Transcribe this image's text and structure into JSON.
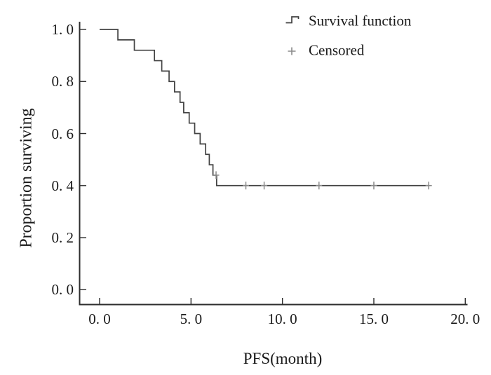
{
  "figure_title": "",
  "colors": {
    "background": "#ffffff",
    "axis": "#2d2d2d",
    "curve": "#424242",
    "censor_mark": "#8a8a8a",
    "text": "#1b1b1b"
  },
  "chart_data": {
    "type": "line",
    "subtype": "kaplan-meier-step",
    "title": "",
    "xlabel": "PFS(month)",
    "ylabel": "Proportion surviving",
    "xlim": [
      0,
      20
    ],
    "ylim": [
      0.0,
      1.0
    ],
    "grid": false,
    "legend_position": "top-right",
    "x_ticks": {
      "values": [
        0,
        5,
        10,
        15,
        20
      ],
      "labels": [
        "0. 0",
        "5. 0",
        "10. 0",
        "15. 0",
        "20. 0"
      ]
    },
    "y_ticks": {
      "values": [
        1.0,
        0.8,
        0.6,
        0.4,
        0.2,
        0.0
      ],
      "labels": [
        "1. 0",
        "0. 8",
        "0. 6",
        "0. 4",
        "0. 2",
        "0. 0"
      ]
    },
    "series": [
      {
        "name": "Survival function",
        "type": "step",
        "start": [
          0.0,
          1.0
        ],
        "drops": [
          [
            1.0,
            0.96
          ],
          [
            1.9,
            0.92
          ],
          [
            3.0,
            0.88
          ],
          [
            3.4,
            0.84
          ],
          [
            3.8,
            0.8
          ],
          [
            4.1,
            0.76
          ],
          [
            4.4,
            0.72
          ],
          [
            4.6,
            0.68
          ],
          [
            4.9,
            0.64
          ],
          [
            5.2,
            0.6
          ],
          [
            5.5,
            0.56
          ],
          [
            5.8,
            0.52
          ],
          [
            6.0,
            0.48
          ],
          [
            6.2,
            0.44
          ],
          [
            6.4,
            0.4
          ]
        ],
        "end_x": 18.0
      },
      {
        "name": "Censored",
        "type": "scatter_plus",
        "points": [
          [
            6.37,
            0.44
          ],
          [
            8.0,
            0.4
          ],
          [
            9.0,
            0.4
          ],
          [
            12.0,
            0.4
          ],
          [
            15.0,
            0.4
          ],
          [
            18.0,
            0.4
          ]
        ]
      }
    ],
    "legend": [
      {
        "symbol": "step",
        "label": "Survival function"
      },
      {
        "symbol": "plus",
        "label": "Censored"
      }
    ]
  }
}
